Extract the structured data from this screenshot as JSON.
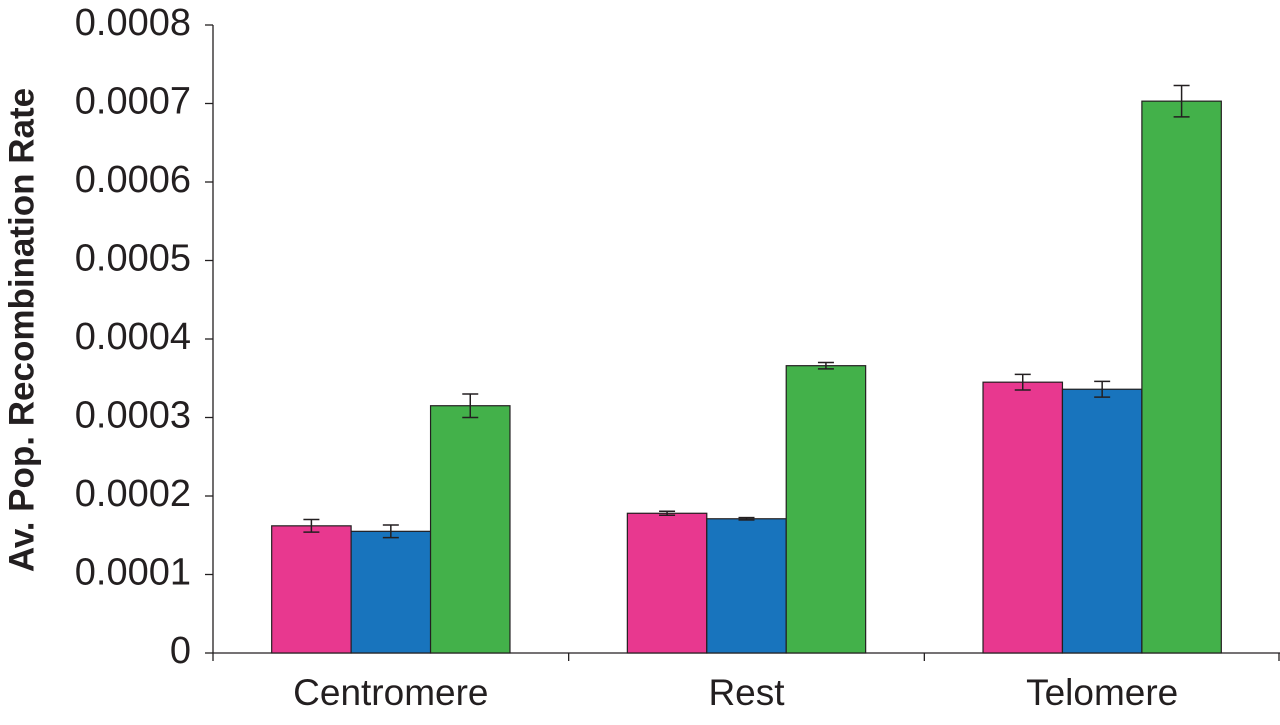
{
  "chart_data": {
    "type": "bar",
    "y_label": "Av. Pop. Recombination Rate",
    "categories": [
      "Centromere",
      "Rest",
      "Telomere"
    ],
    "series": [
      {
        "color": "#e8388f",
        "values": [
          0.000162,
          0.000178,
          0.000345
        ],
        "errors": [
          8e-06,
          2.5e-06,
          1e-05
        ]
      },
      {
        "color": "#1874bd",
        "values": [
          0.000155,
          0.000171,
          0.000336
        ],
        "errors": [
          8e-06,
          1.5e-06,
          1e-05
        ]
      },
      {
        "color": "#43b14a",
        "values": [
          0.000315,
          0.000366,
          0.000703
        ],
        "errors": [
          1.5e-05,
          4e-06,
          2e-05
        ]
      }
    ],
    "ylim": [
      0,
      0.0008
    ],
    "yticks": [
      0,
      0.0001,
      0.0002,
      0.0003,
      0.0004,
      0.0005,
      0.0006,
      0.0007,
      0.0008
    ],
    "grid": false
  }
}
